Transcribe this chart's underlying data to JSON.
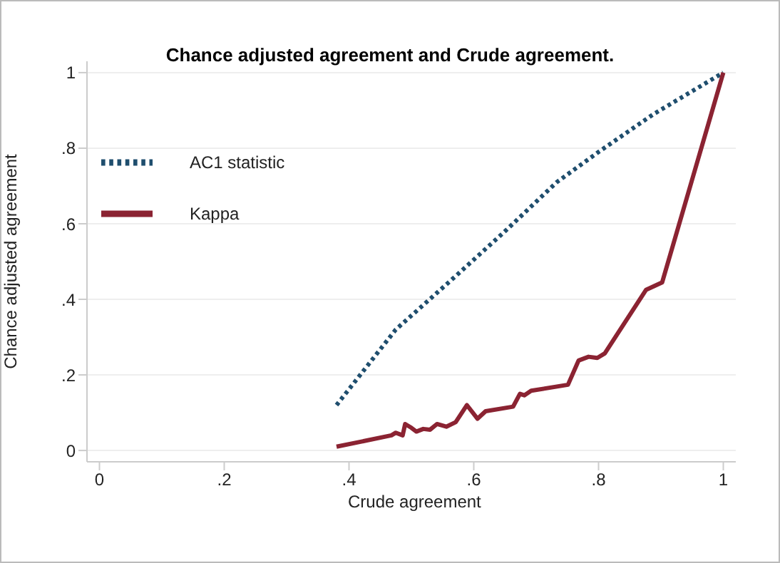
{
  "chart_data": {
    "type": "line",
    "title": "Chance adjusted agreement and Crude agreement.",
    "xlabel": "Crude agreement",
    "ylabel": "Chance adjusted agreement",
    "xlim": [
      -0.02,
      1.02
    ],
    "xticks": [
      0,
      {
        "value": 0.2,
        "label": ".2"
      },
      {
        "value": 0.4,
        "label": ".4"
      },
      {
        "value": 0.6,
        "label": ".6"
      },
      {
        "value": 0.8,
        "label": ".8"
      },
      1
    ],
    "ylim": [
      -0.03,
      1.03
    ],
    "yticks": [
      0,
      {
        "value": 0.2,
        "label": ".2"
      },
      {
        "value": 0.4,
        "label": ".4"
      },
      {
        "value": 0.6,
        "label": ".6"
      },
      {
        "value": 0.8,
        "label": ".8"
      },
      1
    ],
    "grid": "y",
    "legend": "top left",
    "marker": "none",
    "series": [
      {
        "name": "AC1 statistic",
        "color": "#1f4e6e",
        "line_style": "dotted",
        "x": [
          0.38,
          0.475,
          0.57,
          0.65,
          0.733,
          0.8,
          0.888,
          1
        ],
        "values": [
          0.12,
          0.32,
          0.46,
          0.58,
          0.71,
          0.79,
          0.89,
          1
        ]
      },
      {
        "name": "Kappa",
        "color": "#8b2332",
        "line_style": "solid",
        "x": [
          0.38,
          0.468,
          0.475,
          0.486,
          0.49,
          0.5,
          0.508,
          0.519,
          0.53,
          0.541,
          0.556,
          0.571,
          0.589,
          0.606,
          0.619,
          0.663,
          0.674,
          0.681,
          0.692,
          0.751,
          0.768,
          0.784,
          0.798,
          0.81,
          0.876,
          0.902,
          1
        ],
        "values": [
          0.01,
          0.04,
          0.047,
          0.04,
          0.07,
          0.06,
          0.05,
          0.057,
          0.055,
          0.07,
          0.063,
          0.075,
          0.12,
          0.084,
          0.104,
          0.116,
          0.15,
          0.146,
          0.158,
          0.174,
          0.238,
          0.248,
          0.245,
          0.257,
          0.425,
          0.445,
          1
        ]
      }
    ]
  }
}
